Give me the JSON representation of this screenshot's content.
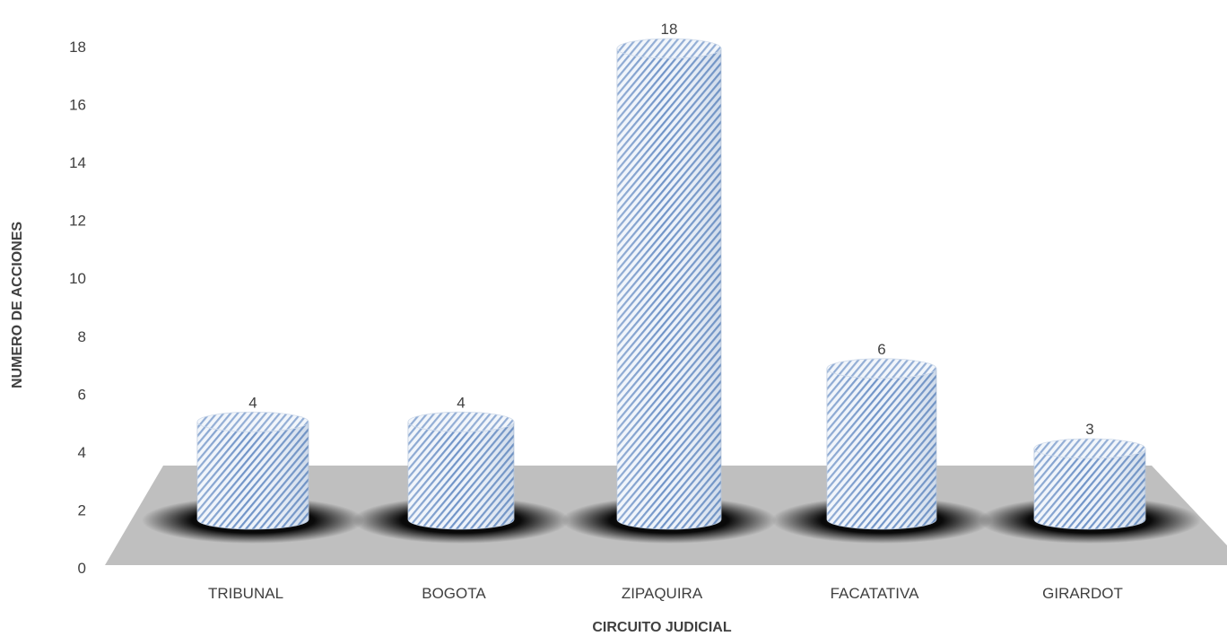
{
  "chart_data": {
    "type": "bar",
    "style": "3d-cylinder",
    "categories": [
      "TRIBUNAL",
      "BOGOTA",
      "ZIPAQUIRA",
      "FACATATIVA",
      "GIRARDOT"
    ],
    "values": [
      4,
      4,
      18,
      6,
      3
    ],
    "data_labels": [
      "4",
      "4",
      "18",
      "6",
      "3"
    ],
    "title": "",
    "xlabel": "CIRCUITO JUDICIAL",
    "ylabel": "NUMERO DE ACCIONES",
    "ylim": [
      0,
      18
    ],
    "yticks": [
      0,
      2,
      4,
      6,
      8,
      10,
      12,
      14,
      16,
      18
    ],
    "yticks_labels": [
      "0",
      "2",
      "4",
      "6",
      "8",
      "10",
      "12",
      "14",
      "16",
      "18"
    ],
    "grid": false,
    "legend": "none",
    "colors": {
      "bar": "#b8cce4",
      "bar_stripe": "#4f81bd",
      "floor": "#bfbfbf",
      "text": "#404040"
    }
  }
}
